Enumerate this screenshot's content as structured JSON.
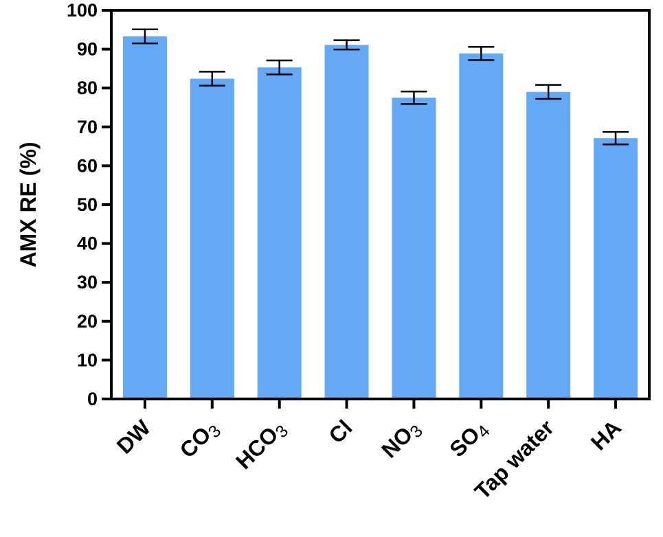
{
  "chart_data": {
    "type": "bar",
    "ylabel": "AMX RE (%)",
    "xlabel": "",
    "ylim": [
      0,
      100
    ],
    "yticks": [
      0,
      10,
      20,
      30,
      40,
      50,
      60,
      70,
      80,
      90,
      100
    ],
    "categories": [
      {
        "base": "DW",
        "sub": ""
      },
      {
        "base": "CO",
        "sub": "3"
      },
      {
        "base": "HCO",
        "sub": "3"
      },
      {
        "base": "Cl",
        "sub": ""
      },
      {
        "base": "NO",
        "sub": "3"
      },
      {
        "base": "SO",
        "sub": "4"
      },
      {
        "base": "Tap water",
        "sub": ""
      },
      {
        "base": "HA",
        "sub": ""
      }
    ],
    "values": [
      93.3,
      82.4,
      85.3,
      91.1,
      77.5,
      88.9,
      79.0,
      67.1
    ],
    "errors": [
      1.8,
      1.8,
      1.8,
      1.2,
      1.6,
      1.7,
      1.8,
      1.6
    ],
    "bar_color": "#64a9f5",
    "grid": false,
    "legend": "none"
  }
}
